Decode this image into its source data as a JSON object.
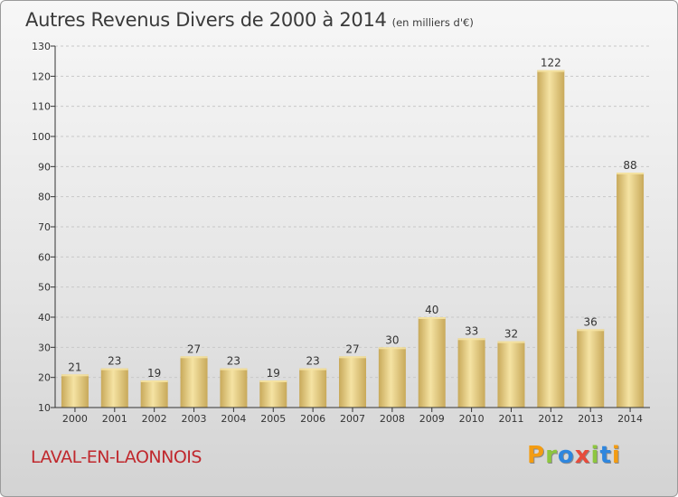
{
  "header": {
    "title": "Autres Revenus Divers de 2000 à 2014",
    "unit": "(en milliers d'€)"
  },
  "commune": "LAVAL-EN-LAONNOIS",
  "logo": {
    "letters": [
      "P",
      "r",
      "o",
      "x",
      "i",
      "t",
      "i"
    ],
    "colors": [
      "#f39c12",
      "#8dc63f",
      "#2e86de",
      "#e74c3c",
      "#8dc63f",
      "#2e86de",
      "#f39c12"
    ]
  },
  "colors": {
    "bar_light": "#f5e3a3",
    "bar_dark": "#c8a95a",
    "axis": "#333333",
    "grid": "#c8c8c8"
  },
  "chart_data": {
    "type": "bar",
    "title": "Autres Revenus Divers de 2000 à 2014",
    "categories": [
      "2000",
      "2001",
      "2002",
      "2003",
      "2004",
      "2005",
      "2006",
      "2007",
      "2008",
      "2009",
      "2010",
      "2011",
      "2012",
      "2013",
      "2014"
    ],
    "values": [
      21,
      23,
      19,
      27,
      23,
      19,
      23,
      27,
      30,
      40,
      33,
      32,
      122,
      36,
      88
    ],
    "ylim": [
      10,
      130
    ],
    "yticks": [
      10,
      20,
      30,
      40,
      50,
      60,
      70,
      80,
      90,
      100,
      110,
      120,
      130
    ],
    "grid": "horizontal dashed",
    "data_labels": true
  }
}
